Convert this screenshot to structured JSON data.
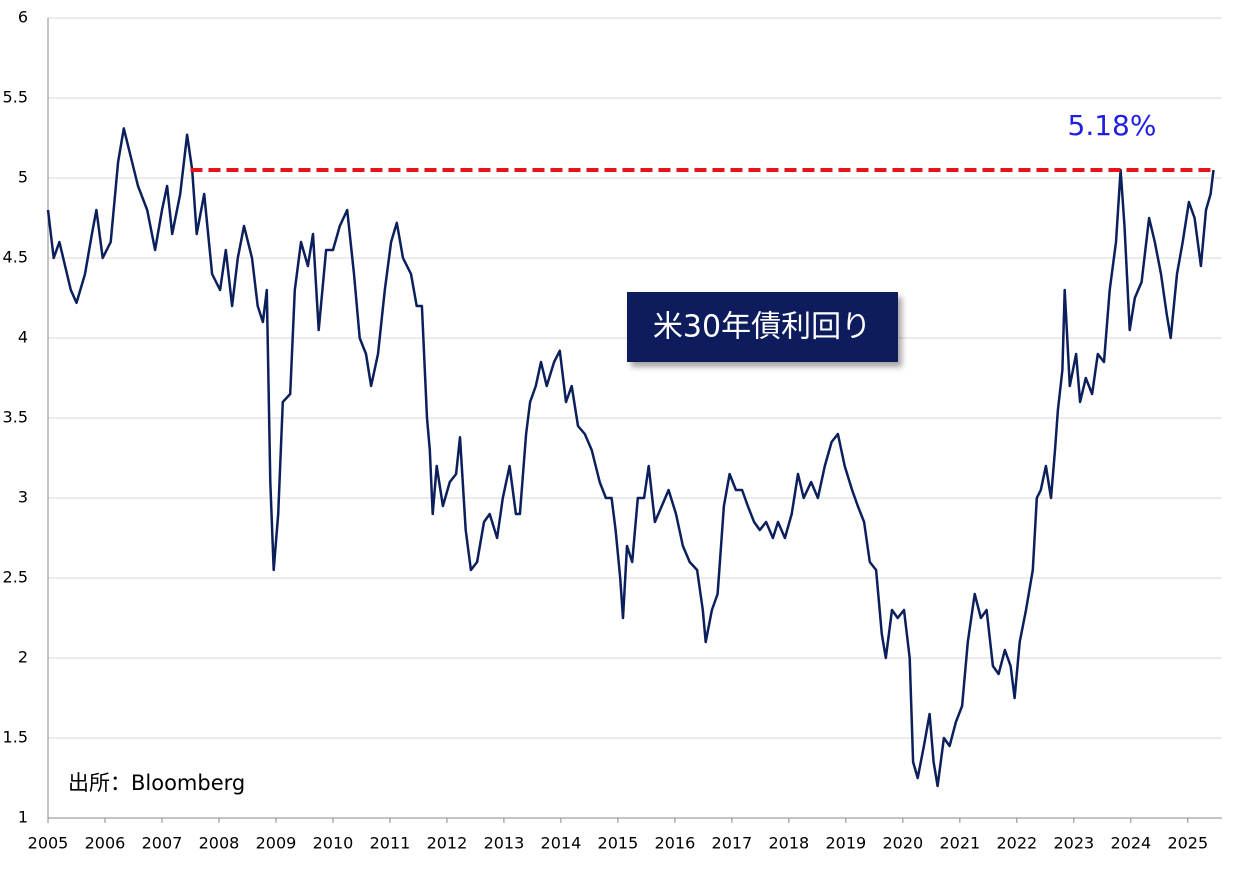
{
  "chart_data": {
    "type": "line",
    "title": "米30年債利回り",
    "source": "出所：Bloomberg",
    "annotation": "5.18%",
    "reference_line": {
      "value": 5.05,
      "from": 2007.5,
      "color": "#e8141b"
    },
    "xlim": [
      2005,
      2025.6
    ],
    "xticks": [
      2005,
      2006,
      2007,
      2008,
      2009,
      2010,
      2011,
      2012,
      2013,
      2014,
      2015,
      2016,
      2017,
      2018,
      2019,
      2020,
      2021,
      2022,
      2023,
      2024,
      2025
    ],
    "ylim": [
      1,
      6
    ],
    "yticks": [
      1,
      1.5,
      2,
      2.5,
      3,
      3.5,
      4,
      4.5,
      5,
      5.5,
      6
    ],
    "grid": true,
    "series": [
      {
        "color": "#0b1f5c",
        "x": [
          2005.0,
          2005.1,
          2005.2,
          2005.4,
          2005.5,
          2005.65,
          2005.77,
          2005.85,
          2005.96,
          2006.1,
          2006.23,
          2006.33,
          2006.44,
          2006.58,
          2006.74,
          2006.88,
          2007.0,
          2007.09,
          2007.18,
          2007.32,
          2007.44,
          2007.53,
          2007.61,
          2007.74,
          2007.88,
          2008.02,
          2008.12,
          2008.23,
          2008.33,
          2008.44,
          2008.58,
          2008.68,
          2008.77,
          2008.84,
          2008.9,
          2008.96,
          2009.04,
          2009.12,
          2009.25,
          2009.33,
          2009.44,
          2009.56,
          2009.65,
          2009.75,
          2009.88,
          2010.0,
          2010.12,
          2010.25,
          2010.37,
          2010.47,
          2010.58,
          2010.67,
          2010.79,
          2010.91,
          2011.02,
          2011.12,
          2011.23,
          2011.37,
          2011.47,
          2011.56,
          2011.65,
          2011.7,
          2011.75,
          2011.82,
          2011.93,
          2012.05,
          2012.16,
          2012.23,
          2012.33,
          2012.42,
          2012.53,
          2012.65,
          2012.75,
          2012.88,
          2012.98,
          2013.1,
          2013.21,
          2013.28,
          2013.39,
          2013.46,
          2013.56,
          2013.65,
          2013.75,
          2013.88,
          2013.98,
          2014.09,
          2014.19,
          2014.3,
          2014.42,
          2014.54,
          2014.68,
          2014.79,
          2014.89,
          2014.96,
          2015.04,
          2015.09,
          2015.16,
          2015.25,
          2015.35,
          2015.46,
          2015.54,
          2015.65,
          2015.77,
          2015.89,
          2016.02,
          2016.14,
          2016.26,
          2016.39,
          2016.49,
          2016.54,
          2016.65,
          2016.75,
          2016.86,
          2016.96,
          2017.07,
          2017.18,
          2017.28,
          2017.39,
          2017.49,
          2017.6,
          2017.72,
          2017.81,
          2017.93,
          2018.05,
          2018.16,
          2018.26,
          2018.39,
          2018.51,
          2018.63,
          2018.75,
          2018.86,
          2018.98,
          2019.11,
          2019.21,
          2019.32,
          2019.42,
          2019.53,
          2019.63,
          2019.7,
          2019.81,
          2019.91,
          2020.02,
          2020.12,
          2020.18,
          2020.26,
          2020.37,
          2020.47,
          2020.54,
          2020.61,
          2020.72,
          2020.82,
          2020.93,
          2021.04,
          2021.14,
          2021.26,
          2021.37,
          2021.47,
          2021.58,
          2021.68,
          2021.79,
          2021.89,
          2021.96,
          2022.05,
          2022.16,
          2022.28,
          2022.35,
          2022.42,
          2022.51,
          2022.6,
          2022.67,
          2022.72,
          2022.8,
          2022.84,
          2022.93,
          2023.04,
          2023.11,
          2023.21,
          2023.32,
          2023.42,
          2023.53,
          2023.63,
          2023.74,
          2023.82,
          2023.89,
          2023.98,
          2024.07,
          2024.19,
          2024.32,
          2024.42,
          2024.53,
          2024.63,
          2024.7,
          2024.81,
          2024.91,
          2025.02,
          2025.12,
          2025.23,
          2025.32,
          2025.4,
          2025.45
        ],
        "values": [
          4.8,
          4.5,
          4.6,
          4.3,
          4.22,
          4.4,
          4.65,
          4.8,
          4.5,
          4.6,
          5.1,
          5.31,
          5.15,
          4.95,
          4.8,
          4.55,
          4.8,
          4.95,
          4.65,
          4.9,
          5.27,
          5.05,
          4.65,
          4.9,
          4.4,
          4.3,
          4.55,
          4.2,
          4.5,
          4.7,
          4.5,
          4.2,
          4.1,
          4.3,
          3.1,
          2.55,
          2.9,
          3.6,
          3.65,
          4.3,
          4.6,
          4.45,
          4.65,
          4.05,
          4.55,
          4.55,
          4.7,
          4.8,
          4.4,
          4.0,
          3.9,
          3.7,
          3.9,
          4.3,
          4.6,
          4.72,
          4.5,
          4.4,
          4.2,
          4.2,
          3.5,
          3.3,
          2.9,
          3.2,
          2.95,
          3.1,
          3.15,
          3.38,
          2.8,
          2.55,
          2.6,
          2.85,
          2.9,
          2.75,
          3.0,
          3.2,
          2.9,
          2.9,
          3.4,
          3.6,
          3.7,
          3.85,
          3.7,
          3.85,
          3.92,
          3.6,
          3.7,
          3.45,
          3.4,
          3.3,
          3.1,
          3.0,
          3.0,
          2.8,
          2.5,
          2.25,
          2.7,
          2.6,
          3.0,
          3.0,
          3.2,
          2.85,
          2.95,
          3.05,
          2.9,
          2.7,
          2.6,
          2.55,
          2.3,
          2.1,
          2.3,
          2.4,
          2.95,
          3.15,
          3.05,
          3.05,
          2.95,
          2.85,
          2.8,
          2.85,
          2.75,
          2.85,
          2.75,
          2.9,
          3.15,
          3.0,
          3.1,
          3.0,
          3.2,
          3.35,
          3.4,
          3.2,
          3.05,
          2.95,
          2.85,
          2.6,
          2.55,
          2.15,
          2.0,
          2.3,
          2.25,
          2.3,
          2.0,
          1.35,
          1.25,
          1.45,
          1.65,
          1.35,
          1.2,
          1.5,
          1.45,
          1.6,
          1.7,
          2.1,
          2.4,
          2.25,
          2.3,
          1.95,
          1.9,
          2.05,
          1.95,
          1.75,
          2.1,
          2.3,
          2.55,
          3.0,
          3.05,
          3.2,
          3.0,
          3.3,
          3.55,
          3.8,
          4.3,
          3.7,
          3.9,
          3.6,
          3.75,
          3.65,
          3.9,
          3.85,
          4.3,
          4.6,
          5.05,
          4.7,
          4.05,
          4.25,
          4.35,
          4.75,
          4.6,
          4.4,
          4.15,
          4.0,
          4.4,
          4.6,
          4.85,
          4.75,
          4.45,
          4.8,
          4.9,
          5.05
        ]
      }
    ]
  }
}
